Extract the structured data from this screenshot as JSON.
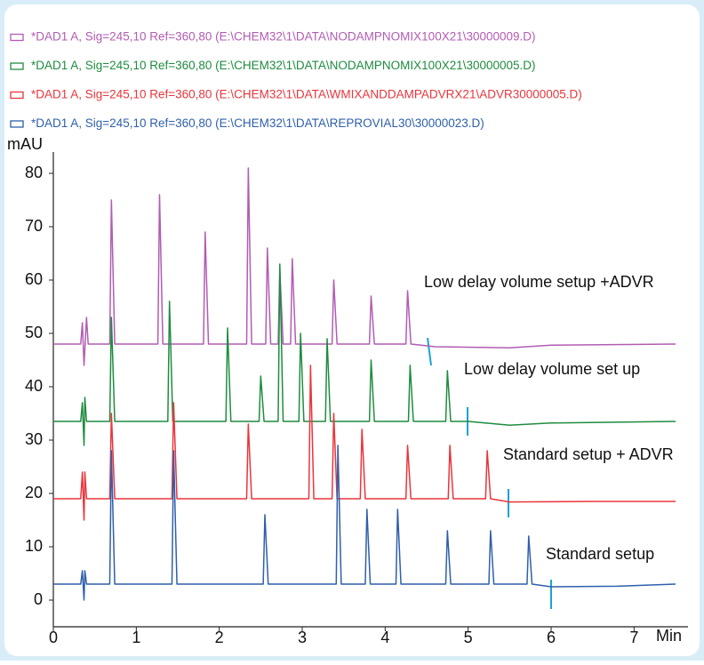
{
  "chart_data": {
    "type": "line",
    "legend": "top",
    "y_axis_label": "mAU",
    "x_axis_label": "Min",
    "xlim": [
      0,
      7.65
    ],
    "ylim": [
      -5,
      84
    ],
    "xticks": [
      0,
      1,
      2,
      3,
      4,
      5,
      6,
      7
    ],
    "yticks": [
      0,
      10,
      20,
      30,
      40,
      50,
      60,
      70,
      80
    ],
    "annotations": [
      "Low delay volume setup +ADVR",
      "Low delay volume set up",
      "Standard setup + ADVR",
      "Standard setup"
    ],
    "series": [
      {
        "name": "*DAD1 A, Sig=245,10 Ref=360,80 (E:\\CHEM32\\1\\DATA\\NODAMPNOMIX100X21\\30000009.D)",
        "color": "#b25cb4",
        "x": [
          0,
          0.33,
          0.35,
          0.37,
          0.4,
          0.42,
          0.68,
          0.7,
          0.74,
          1.26,
          1.28,
          1.32,
          1.81,
          1.83,
          1.87,
          2.33,
          2.35,
          2.39,
          2.56,
          2.58,
          2.62,
          2.71,
          2.73,
          2.77,
          2.86,
          2.88,
          2.92,
          3.36,
          3.38,
          3.42,
          3.81,
          3.83,
          3.87,
          4.25,
          4.27,
          4.31,
          4.6,
          5.5,
          6,
          7.5
        ],
        "values": [
          48,
          48,
          52,
          44,
          53,
          48,
          48,
          75,
          48,
          48,
          76,
          48,
          48,
          69,
          48,
          48,
          81,
          48,
          48,
          66,
          48,
          48,
          62,
          48,
          48,
          64,
          48,
          48,
          60,
          48,
          48,
          57,
          48,
          48,
          58,
          48,
          47.5,
          47.3,
          47.8,
          48
        ]
      },
      {
        "name": "*DAD1 A, Sig=245,10 Ref=360,80 (E:\\CHEM32\\1\\DATA\\NODAMPNOMIX100X21\\30000005.D)",
        "color": "#1f8c3f",
        "x": [
          0,
          0.33,
          0.35,
          0.37,
          0.38,
          0.4,
          0.68,
          0.7,
          0.74,
          1.38,
          1.4,
          1.44,
          2.08,
          2.1,
          2.14,
          2.48,
          2.5,
          2.54,
          2.71,
          2.73,
          2.77,
          2.96,
          2.98,
          3.02,
          3.28,
          3.3,
          3.34,
          3.81,
          3.83,
          3.87,
          4.28,
          4.3,
          4.34,
          4.73,
          4.75,
          4.79,
          5,
          5.5,
          6,
          7.5
        ],
        "values": [
          33.5,
          33.5,
          37,
          29,
          38,
          33.5,
          33.5,
          53,
          33.5,
          33.5,
          56,
          33.5,
          33.5,
          51,
          33.5,
          33.5,
          42,
          33.5,
          33.5,
          63,
          33.5,
          33.5,
          50,
          33.5,
          33.5,
          49,
          33.5,
          33.5,
          45,
          33.5,
          33.5,
          44,
          33.5,
          33.5,
          43,
          33.5,
          33.5,
          32.8,
          33.2,
          33.5
        ]
      },
      {
        "name": "*DAD1 A, Sig=245,10 Ref=360,80 (E:\\CHEM32\\1\\DATA\\WMIXANDDAMPADVRX21\\ADVR30000005.D)",
        "color": "#e8363c",
        "x": [
          0,
          0.33,
          0.35,
          0.37,
          0.38,
          0.4,
          0.68,
          0.7,
          0.74,
          1.43,
          1.45,
          1.49,
          2.33,
          2.35,
          2.39,
          3.08,
          3.1,
          3.14,
          3.36,
          3.38,
          3.42,
          3.7,
          3.72,
          3.76,
          4.25,
          4.27,
          4.31,
          4.76,
          4.78,
          4.82,
          5.21,
          5.23,
          5.27,
          5.5,
          6.5,
          7.5
        ],
        "values": [
          19,
          19,
          24,
          15,
          24,
          19,
          19,
          35,
          19,
          19,
          37,
          19,
          19,
          33,
          19,
          19,
          44,
          19,
          19,
          35,
          19,
          19,
          32,
          19,
          19,
          29,
          19,
          19,
          29,
          19,
          19,
          28,
          19,
          18.4,
          18.5,
          18.5
        ]
      },
      {
        "name": "*DAD1 A, Sig=245,10 Ref=360,80 (E:\\CHEM32\\1\\DATA\\REPROVIAL30\\30000023.D)",
        "color": "#2f5fab",
        "x": [
          0,
          0.33,
          0.35,
          0.37,
          0.38,
          0.4,
          0.68,
          0.7,
          0.74,
          1.43,
          1.45,
          1.49,
          2.53,
          2.55,
          2.59,
          3.41,
          3.43,
          3.47,
          3.76,
          3.78,
          3.82,
          4.13,
          4.15,
          4.19,
          4.73,
          4.75,
          4.79,
          5.25,
          5.27,
          5.31,
          5.71,
          5.73,
          5.77,
          6,
          6.8,
          7.5
        ],
        "values": [
          3,
          3,
          5.5,
          0,
          5.5,
          3,
          3,
          28,
          3,
          3,
          28,
          3,
          3,
          16,
          3,
          3,
          29,
          3,
          3,
          17,
          3,
          3,
          17,
          3,
          3,
          13,
          3,
          3,
          13,
          3,
          3,
          12,
          3,
          2.5,
          2.6,
          3
        ]
      }
    ]
  }
}
